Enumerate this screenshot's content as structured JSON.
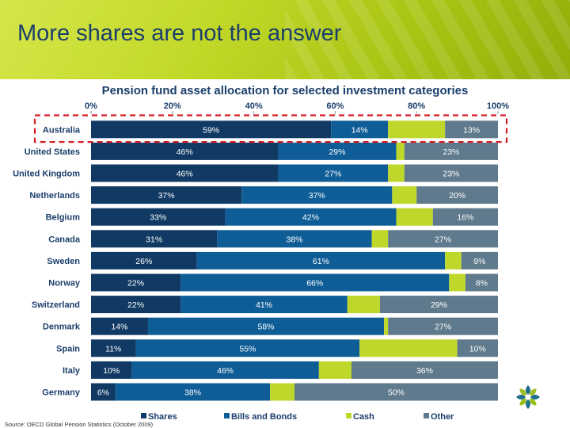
{
  "slide": {
    "title": "More shares are not the answer",
    "source": "Source: OECD Global Pension Statistics (October 2009)"
  },
  "colors": {
    "shares": "#103a64",
    "bonds": "#0f5d97",
    "cash": "#bfd72a",
    "other": "#5f7a8c",
    "highlight": "#d51f26"
  },
  "chart_data": {
    "type": "bar",
    "orientation": "horizontal",
    "stacked": true,
    "title": "Pension fund asset allocation for selected investment categories",
    "x_ticks": [
      "0%",
      "20%",
      "40%",
      "60%",
      "80%",
      "100%"
    ],
    "xlim": [
      0,
      100
    ],
    "legend_position": "bottom",
    "highlighted_category": "Australia",
    "categories": [
      "Australia",
      "United States",
      "United Kingdom",
      "Netherlands",
      "Belgium",
      "Canada",
      "Sweden",
      "Norway",
      "Switzerland",
      "Denmark",
      "Spain",
      "Italy",
      "Germany"
    ],
    "series": [
      {
        "name": "Shares",
        "values": [
          59,
          46,
          46,
          37,
          33,
          31,
          26,
          22,
          22,
          14,
          11,
          10,
          6
        ]
      },
      {
        "name": "Bills and Bonds",
        "values": [
          14,
          29,
          27,
          37,
          42,
          38,
          61,
          66,
          41,
          58,
          55,
          46,
          38
        ]
      },
      {
        "name": "Cash",
        "values": [
          14,
          2,
          4,
          6,
          9,
          4,
          4,
          4,
          8,
          1,
          24,
          8,
          6
        ]
      },
      {
        "name": "Other",
        "values": [
          13,
          23,
          23,
          20,
          16,
          27,
          9,
          8,
          29,
          27,
          10,
          36,
          50
        ]
      }
    ],
    "data_labels": [
      [
        "59%",
        "14%",
        "",
        "13%"
      ],
      [
        "46%",
        "29%",
        "",
        "23%"
      ],
      [
        "46%",
        "27%",
        "",
        "23%"
      ],
      [
        "37%",
        "37%",
        "",
        "20%"
      ],
      [
        "33%",
        "42%",
        "",
        "16%"
      ],
      [
        "31%",
        "38%",
        "",
        "27%"
      ],
      [
        "26%",
        "61%",
        "",
        "9%"
      ],
      [
        "22%",
        "66%",
        "",
        "8%"
      ],
      [
        "22%",
        "41%",
        "",
        "29%"
      ],
      [
        "14%",
        "58%",
        "",
        "27%"
      ],
      [
        "11%",
        "55%",
        "",
        "10%"
      ],
      [
        "10%",
        "46%",
        "",
        "36%"
      ],
      [
        "6%",
        "38%",
        "",
        "50%"
      ]
    ]
  }
}
